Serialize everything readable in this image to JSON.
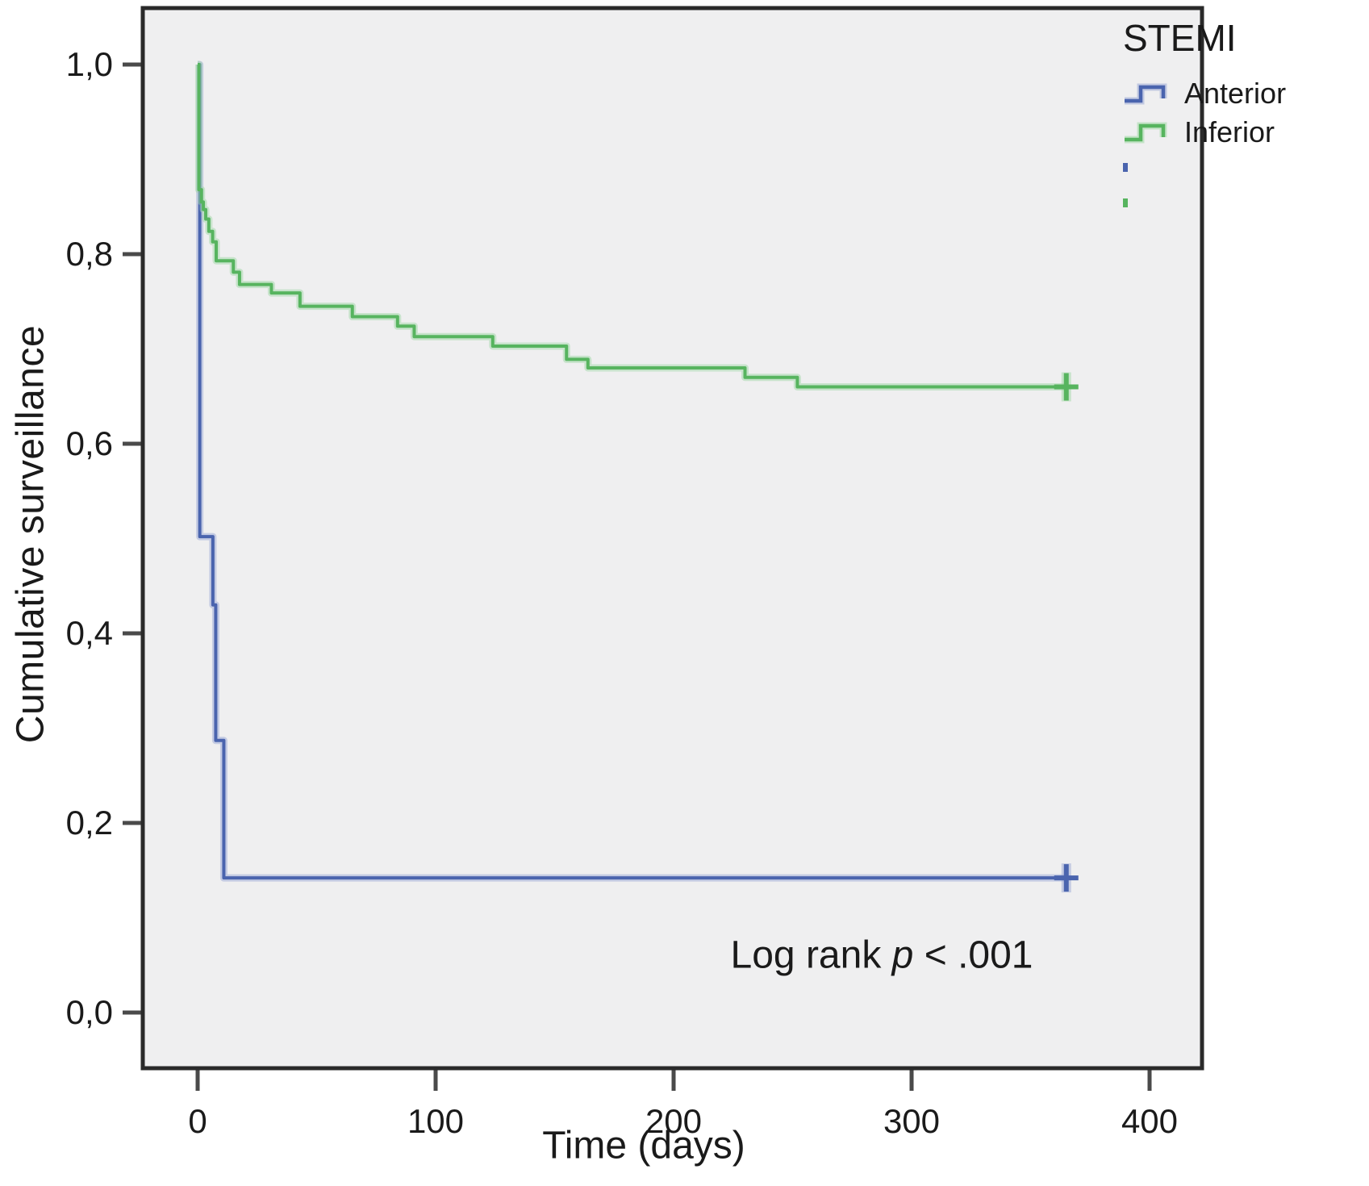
{
  "y_axis": {
    "label": "Cumulative surveillance",
    "ticks": [
      {
        "label": "1,0",
        "value": 1.0
      },
      {
        "label": "0,8",
        "value": 0.8
      },
      {
        "label": "0,6",
        "value": 0.6
      },
      {
        "label": "0,4",
        "value": 0.4
      },
      {
        "label": "0,2",
        "value": 0.2
      },
      {
        "label": "0,0",
        "value": 0.0
      }
    ]
  },
  "x_axis": {
    "label": "Time (days)",
    "ticks": [
      {
        "label": "0",
        "value": 0
      },
      {
        "label": "100",
        "value": 100
      },
      {
        "label": "200",
        "value": 200
      },
      {
        "label": "300",
        "value": 300
      },
      {
        "label": "400",
        "value": 400
      }
    ]
  },
  "legend": {
    "title": "STEMI",
    "entries": [
      {
        "label": "Anterior",
        "color": "#4a64ae",
        "halo": "#9aa8d6"
      },
      {
        "label": "Inferior",
        "color": "#57b45f",
        "halo": "#a0d8a5"
      }
    ]
  },
  "annotation": {
    "prefix": "Log rank ",
    "p": "p",
    "suffix": " < .001"
  },
  "colors": {
    "plot_background": "#efeff0",
    "frame": "#2a2a2a",
    "tick": "#4a4a4a",
    "text": "#1a1a1a",
    "anterior": "#4a64ae",
    "anterior_halo": "#9aa8d6",
    "inferior": "#57b45f",
    "inferior_halo": "#a0d8a5"
  },
  "chart_data": {
    "type": "line",
    "subtype": "kaplan-meier-step",
    "title": "",
    "xlabel": "Time (days)",
    "ylabel": "Cumulative surveillance",
    "xlim": [
      -23,
      422
    ],
    "ylim": [
      -0.059,
      1.06
    ],
    "grid": false,
    "legend_position": "top-right-outside",
    "series": [
      {
        "name": "Anterior",
        "color": "#4a64ae",
        "halo": "#9aa8d6",
        "start_value": 1.0,
        "drops": [
          [
            0.9,
            0.502
          ],
          [
            6.4,
            0.43
          ],
          [
            7.6,
            0.287
          ],
          [
            11,
            0.142
          ]
        ],
        "end_day": 365,
        "censored": [
          [
            365,
            0.142
          ]
        ]
      },
      {
        "name": "Inferior",
        "color": "#57b45f",
        "halo": "#a0d8a5",
        "start_value": 1.0,
        "drops": [
          [
            0.5,
            0.868
          ],
          [
            1.6,
            0.855
          ],
          [
            2.4,
            0.847
          ],
          [
            3.4,
            0.837
          ],
          [
            4.7,
            0.824
          ],
          [
            6.3,
            0.813
          ],
          [
            7.8,
            0.793
          ],
          [
            15,
            0.781
          ],
          [
            17.6,
            0.768
          ],
          [
            31,
            0.759
          ],
          [
            43,
            0.745
          ],
          [
            65,
            0.734
          ],
          [
            84,
            0.724
          ],
          [
            91,
            0.713
          ],
          [
            124,
            0.703
          ],
          [
            155,
            0.689
          ],
          [
            164,
            0.68
          ],
          [
            230,
            0.67
          ],
          [
            252,
            0.66
          ]
        ],
        "end_day": 365,
        "censored": [
          [
            365,
            0.66
          ]
        ]
      }
    ]
  }
}
